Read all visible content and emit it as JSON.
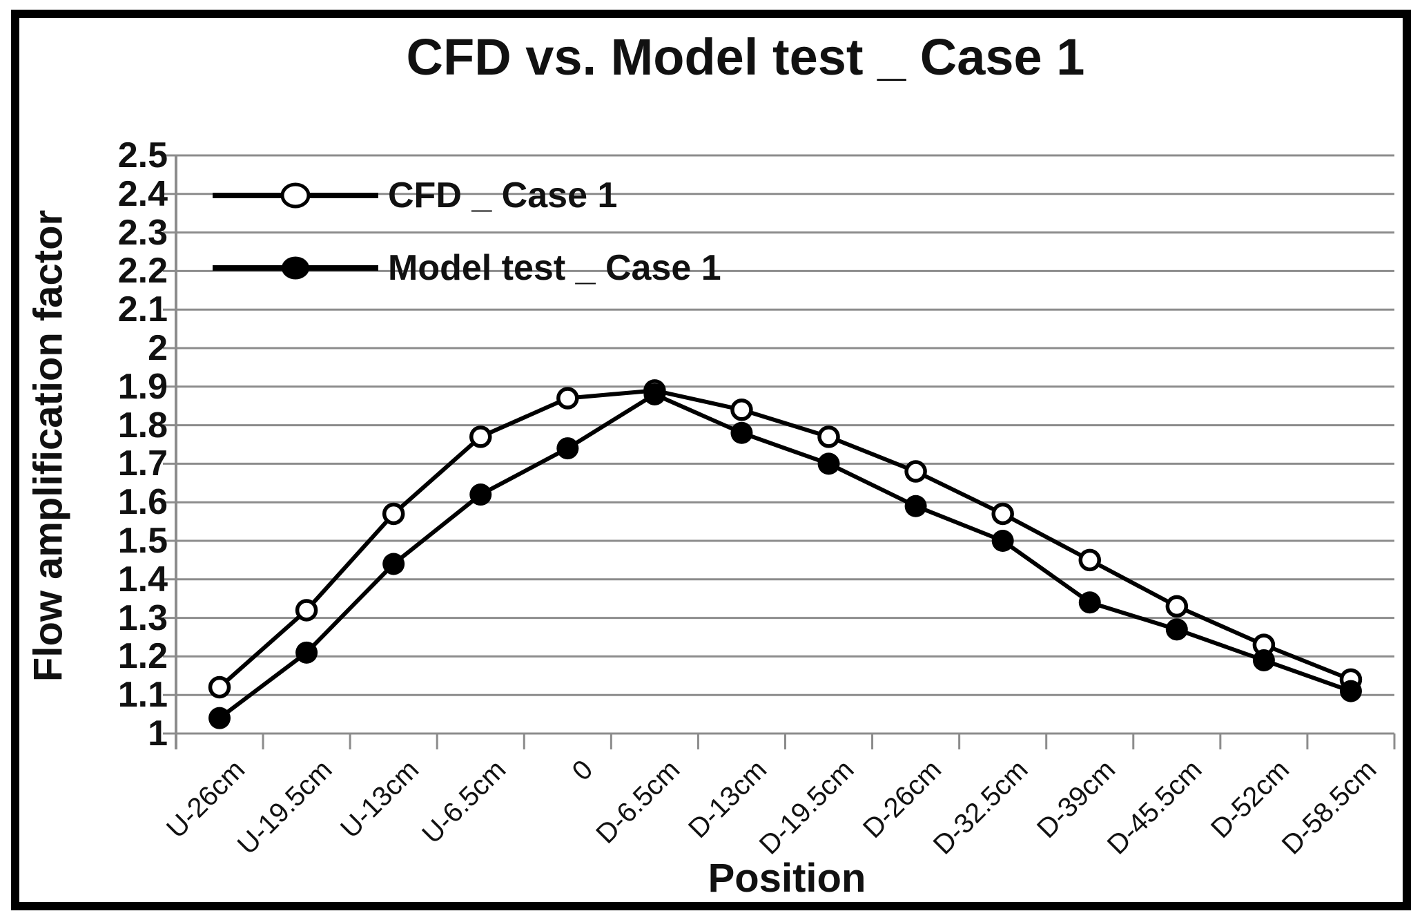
{
  "chart_data": {
    "type": "line",
    "title": "CFD vs. Model test _ Case 1",
    "xlabel": "Position",
    "ylabel": "Flow amplification factor",
    "categories": [
      "U-26cm",
      "U-19.5cm",
      "U-13cm",
      "U-6.5cm",
      "0",
      "D-6.5cm",
      "D-13cm",
      "D-19.5cm",
      "D-26cm",
      "D-32.5cm",
      "D-39cm",
      "D-45.5cm",
      "D-52cm",
      "D-58.5cm"
    ],
    "series": [
      {
        "name": "CFD _ Case 1",
        "marker": "open-circle",
        "values": [
          1.12,
          1.32,
          1.57,
          1.77,
          1.87,
          1.89,
          1.84,
          1.77,
          1.68,
          1.57,
          1.45,
          1.33,
          1.23,
          1.14
        ]
      },
      {
        "name": "Model test _ Case 1",
        "marker": "filled-circle",
        "values": [
          1.04,
          1.21,
          1.44,
          1.62,
          1.74,
          1.88,
          1.78,
          1.7,
          1.59,
          1.5,
          1.34,
          1.27,
          1.19,
          1.11
        ]
      }
    ],
    "ylim": [
      1.0,
      2.5
    ],
    "ytick_step": 0.1,
    "ytick_labels": [
      "2.5",
      "2.4",
      "2.3",
      "2.2",
      "2.1",
      "2",
      "1.9",
      "1.8",
      "1.7",
      "1.6",
      "1.5",
      "1.4",
      "1.3",
      "1.2",
      "1.1",
      "1"
    ],
    "grid": "horizontal",
    "legend_position": "top-left-inside",
    "colors": {
      "series_line": "#000000",
      "grid_line": "#8c8c8c",
      "text": "#111111",
      "background": "#ffffff"
    }
  }
}
